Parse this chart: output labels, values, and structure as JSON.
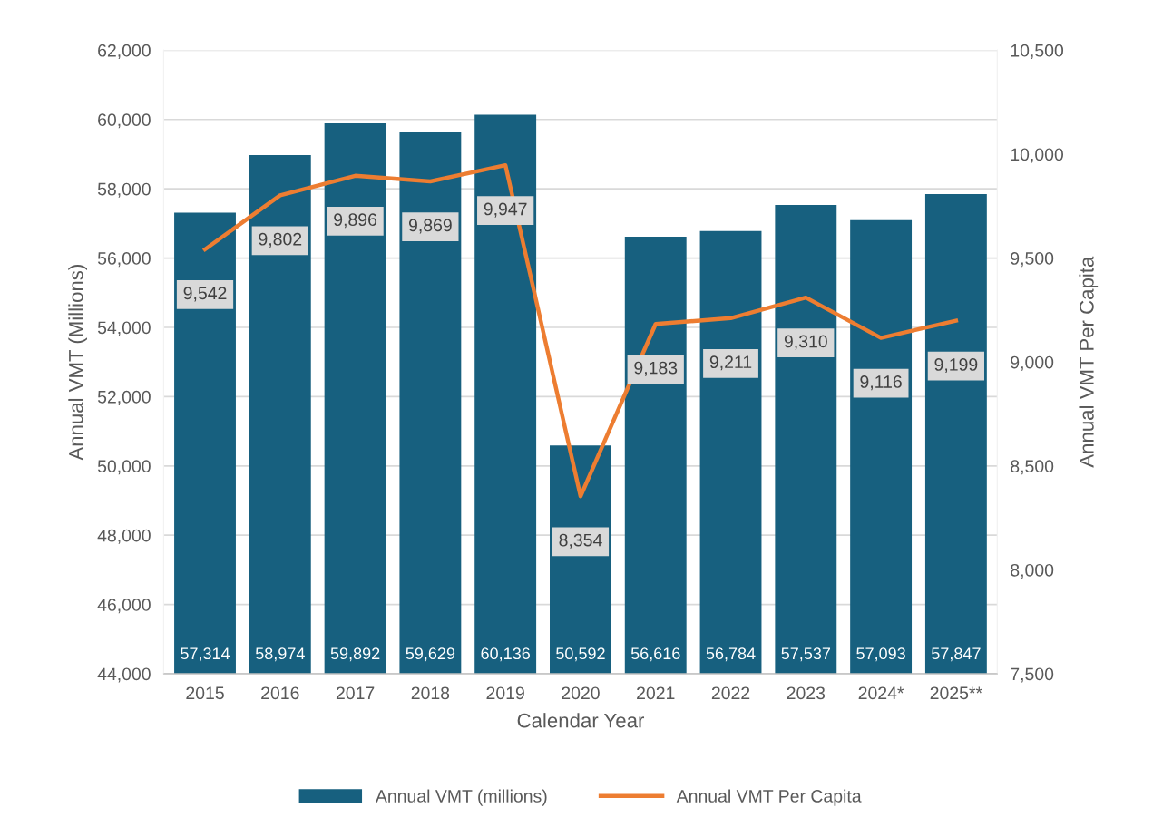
{
  "chart_data": {
    "type": "bar",
    "xlabel": "Calendar Year",
    "ylabel": "Annual VMT (Millions)",
    "y2label": "Annual VMT Per Capita",
    "categories": [
      "2015",
      "2016",
      "2017",
      "2018",
      "2019",
      "2020",
      "2021",
      "2022",
      "2023",
      "2024*",
      "2025**"
    ],
    "series": [
      {
        "name": "Annual VMT (millions)",
        "color": "#17607f",
        "values": [
          57314,
          58974,
          59892,
          59629,
          60136,
          50592,
          56616,
          56784,
          57537,
          57093,
          57847
        ],
        "value_labels": [
          "57,314",
          "58,974",
          "59,892",
          "59,629",
          "60,136",
          "50,592",
          "56,616",
          "56,784",
          "57,537",
          "57,093",
          "57,847"
        ]
      },
      {
        "name": "Annual VMT Per Capita",
        "type": "line",
        "axis": "y2",
        "color": "#ed7d31",
        "values": [
          9542,
          9802,
          9896,
          9869,
          9947,
          8354,
          9183,
          9211,
          9310,
          9116,
          9199
        ],
        "value_labels": [
          "9,542",
          "9,802",
          "9,896",
          "9,869",
          "9,947",
          "8,354",
          "9,183",
          "9,211",
          "9,310",
          "9,116",
          "9,199"
        ]
      }
    ],
    "ylim": [
      44000,
      62000
    ],
    "yticks": [
      {
        "value": 44000,
        "label": "44,000"
      },
      {
        "value": 46000,
        "label": "46,000"
      },
      {
        "value": 48000,
        "label": "48,000"
      },
      {
        "value": 50000,
        "label": "50,000"
      },
      {
        "value": 52000,
        "label": "52,000"
      },
      {
        "value": 54000,
        "label": "54,000"
      },
      {
        "value": 56000,
        "label": "56,000"
      },
      {
        "value": 58000,
        "label": "58,000"
      },
      {
        "value": 60000,
        "label": "60,000"
      },
      {
        "value": 62000,
        "label": "62,000"
      }
    ],
    "y2lim": [
      7500,
      10500
    ],
    "y2ticks": [
      {
        "value": 7500,
        "label": "7,500"
      },
      {
        "value": 8000,
        "label": "8,000"
      },
      {
        "value": 8500,
        "label": "8,500"
      },
      {
        "value": 9000,
        "label": "9,000"
      },
      {
        "value": 9500,
        "label": "9,500"
      },
      {
        "value": 10000,
        "label": "10,000"
      },
      {
        "value": 10500,
        "label": "10,500"
      }
    ],
    "grid": "y",
    "legend": "bottom",
    "line_style": "solid"
  }
}
